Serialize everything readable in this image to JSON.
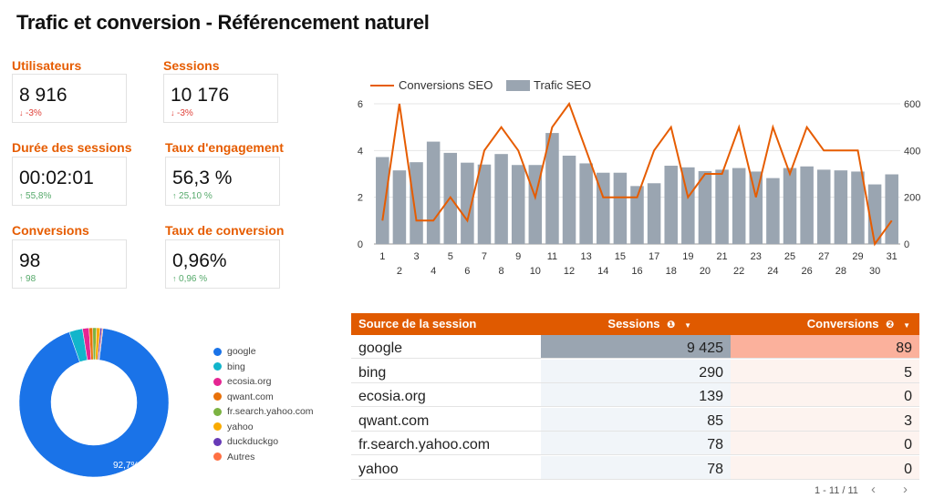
{
  "title": "Trafic et conversion - Référencement naturel",
  "kpis": [
    {
      "label": "Utilisateurs",
      "value": "8 916",
      "delta": "-3%",
      "trend": "down"
    },
    {
      "label": "Sessions",
      "value": "10 176",
      "delta": "-3%",
      "trend": "down"
    },
    {
      "label": "Durée des sessions",
      "value": "00:02:01",
      "delta": "55,8%",
      "trend": "up"
    },
    {
      "label": "Taux d'engagement",
      "value": "56,3 %",
      "delta": "25,10 %",
      "trend": "up"
    },
    {
      "label": "Conversions",
      "value": "98",
      "delta": "98",
      "trend": "up"
    },
    {
      "label": "Taux de conversion",
      "value": "0,96%",
      "delta": "0,96 %",
      "trend": "up"
    }
  ],
  "chart_data": [
    {
      "type": "bar+line",
      "legend": [
        "Conversions SEO",
        "Trafic SEO"
      ],
      "legend_position": "top-left",
      "x": [
        1,
        2,
        3,
        4,
        5,
        6,
        7,
        8,
        9,
        10,
        11,
        12,
        13,
        14,
        15,
        16,
        17,
        18,
        19,
        20,
        21,
        22,
        23,
        24,
        25,
        26,
        27,
        28,
        29,
        30,
        31
      ],
      "x_tick_labels_top": [
        "1",
        "3",
        "5",
        "7",
        "9",
        "11",
        "13",
        "15",
        "17",
        "19",
        "21",
        "23",
        "25",
        "27",
        "29",
        "31"
      ],
      "x_tick_labels_bottom": [
        "2",
        "4",
        "6",
        "8",
        "10",
        "12",
        "14",
        "16",
        "18",
        "20",
        "22",
        "24",
        "26",
        "28",
        "30"
      ],
      "series": [
        {
          "name": "Trafic SEO",
          "axis": "right",
          "type": "bar",
          "values": [
            372,
            315,
            350,
            438,
            390,
            348,
            340,
            385,
            338,
            338,
            475,
            378,
            345,
            305,
            305,
            248,
            260,
            335,
            328,
            312,
            318,
            325,
            310,
            282,
            325,
            332,
            318,
            315,
            310,
            255,
            298
          ]
        },
        {
          "name": "Conversions SEO",
          "axis": "left",
          "type": "line",
          "values": [
            1,
            6,
            1,
            1,
            2,
            1,
            4,
            5,
            4,
            2,
            5,
            6,
            4,
            2,
            2,
            2,
            4,
            5,
            2,
            3,
            3,
            5,
            2,
            5,
            3,
            5,
            4,
            4,
            4,
            0,
            1
          ]
        }
      ],
      "y_left_ticks": [
        "0",
        "2",
        "4",
        "6"
      ],
      "y_left_range": [
        0,
        6
      ],
      "y_right_ticks": [
        "0",
        "200",
        "400",
        "600"
      ],
      "y_right_range": [
        0,
        600
      ],
      "grid": true,
      "colors": {
        "line": "#e65c00",
        "bar": "#9aa5b1"
      }
    },
    {
      "type": "pie",
      "donut": true,
      "slice_label": "92,7%",
      "categories": [
        "google",
        "bing",
        "ecosia.org",
        "qwant.com",
        "fr.search.yahoo.com",
        "yahoo",
        "duckduckgo",
        "Autres"
      ],
      "values": [
        92.7,
        2.9,
        1.4,
        0.8,
        0.8,
        0.8,
        0.4,
        0.2
      ],
      "colors": [
        "#1a73e8",
        "#12b5cb",
        "#e52592",
        "#e8710a",
        "#7cb342",
        "#f9ab00",
        "#673ab7",
        "#ff7043"
      ],
      "legend_position": "right"
    }
  ],
  "table": {
    "columns": [
      "Source de la session",
      "Sessions",
      "Conversions"
    ],
    "column_info_icons": [
      "❶",
      "❷"
    ],
    "rows": [
      {
        "source": "google",
        "sessions": "9 425",
        "conversions": "89"
      },
      {
        "source": "bing",
        "sessions": "290",
        "conversions": "5"
      },
      {
        "source": "ecosia.org",
        "sessions": "139",
        "conversions": "0"
      },
      {
        "source": "qwant.com",
        "sessions": "85",
        "conversions": "3"
      },
      {
        "source": "fr.search.yahoo.com",
        "sessions": "78",
        "conversions": "0"
      },
      {
        "source": "yahoo",
        "sessions": "78",
        "conversions": "0"
      }
    ],
    "sessions_shading": [
      1.0,
      0.03,
      0.015,
      0.009,
      0.008,
      0.008
    ],
    "conversions_shading": [
      1.0,
      0.056,
      0.0,
      0.034,
      0.0,
      0.0
    ],
    "pagination": "1 - 11 / 11"
  }
}
